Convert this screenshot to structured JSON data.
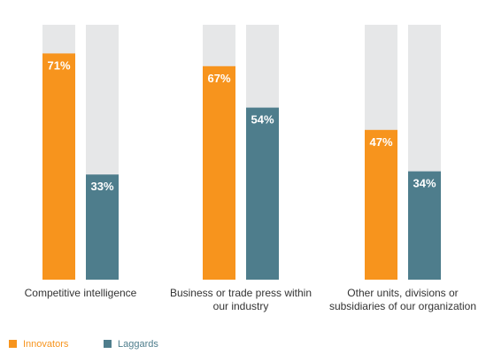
{
  "chart_data": {
    "type": "bar",
    "categories": [
      "Competitive intelligence",
      "Business or trade press within our industry",
      "Other units, divisions or subsidiaries of our organization"
    ],
    "series": [
      {
        "name": "Innovators",
        "color": "#f7941d",
        "values": [
          71,
          67,
          47
        ],
        "value_labels": [
          "71%",
          "67%",
          "47%"
        ]
      },
      {
        "name": "Laggards",
        "color": "#4e7d8c",
        "values": [
          33,
          54,
          34
        ],
        "value_labels": [
          "33%",
          "54%",
          "34%"
        ]
      }
    ],
    "ylim": [
      0,
      80
    ],
    "background_color": "#e6e7e8"
  }
}
